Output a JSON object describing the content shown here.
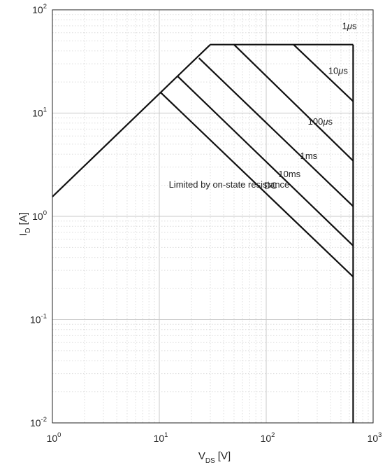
{
  "chart_data": {
    "type": "line",
    "xlabel": "V",
    "xlabel_sub": "DS",
    "xlabel_unit": "[V]",
    "ylabel": "I",
    "ylabel_sub": "D",
    "ylabel_unit": "[A]",
    "xscale": "log",
    "yscale": "log",
    "xlim": [
      1,
      1000
    ],
    "ylim": [
      0.01,
      100
    ],
    "grid": true,
    "x_ticks": [
      {
        "base": "10",
        "exp": "0"
      },
      {
        "base": "10",
        "exp": "1"
      },
      {
        "base": "10",
        "exp": "2"
      },
      {
        "base": "10",
        "exp": "3"
      }
    ],
    "y_ticks": [
      {
        "base": "10",
        "exp": "-2"
      },
      {
        "base": "10",
        "exp": "-1"
      },
      {
        "base": "10",
        "exp": "0"
      },
      {
        "base": "10",
        "exp": "1"
      },
      {
        "base": "10",
        "exp": "2"
      }
    ],
    "series": [
      {
        "key": "rdson",
        "points": [
          [
            1,
            1.55
          ],
          [
            30,
            46
          ]
        ]
      },
      {
        "key": "current_limit",
        "points": [
          [
            30,
            46
          ],
          [
            650,
            46
          ]
        ]
      },
      {
        "key": "voltage_limit",
        "points": [
          [
            650,
            46
          ],
          [
            650,
            0.01
          ]
        ]
      },
      {
        "key": "us1",
        "points": [
          [
            180,
            46
          ],
          [
            650,
            13
          ]
        ]
      },
      {
        "key": "us10",
        "points": [
          [
            50,
            46
          ],
          [
            650,
            3.45
          ]
        ]
      },
      {
        "key": "us100",
        "points": [
          [
            23.5,
            34
          ],
          [
            650,
            1.25
          ]
        ]
      },
      {
        "key": "ms1",
        "points": [
          [
            15,
            22.5
          ],
          [
            650,
            0.52
          ]
        ]
      },
      {
        "key": "dc",
        "points": [
          [
            10.3,
            15.8
          ],
          [
            650,
            0.26
          ]
        ]
      }
    ],
    "annotations": [
      {
        "key": "rdson_label",
        "text": "Limited by on-state resistance",
        "x": 45,
        "y": 1.9
      },
      {
        "key": "us1_label",
        "text": "1",
        "mu": "μ",
        "after": "s",
        "x": 600,
        "y": 65
      },
      {
        "key": "us10_label",
        "text": "10",
        "mu": "μ",
        "after": "s",
        "x": 470,
        "y": 24
      },
      {
        "key": "us100_label",
        "text": "100",
        "mu": "μ",
        "after": "s",
        "x": 320,
        "y": 7.7
      },
      {
        "key": "ms1_label",
        "text": "1ms",
        "x": 250,
        "y": 3.6
      },
      {
        "key": "ms10_label",
        "text": "10ms",
        "x": 165,
        "y": 2.4
      },
      {
        "key": "dc_label",
        "text": "DC",
        "x": 110,
        "y": 1.85
      }
    ]
  }
}
